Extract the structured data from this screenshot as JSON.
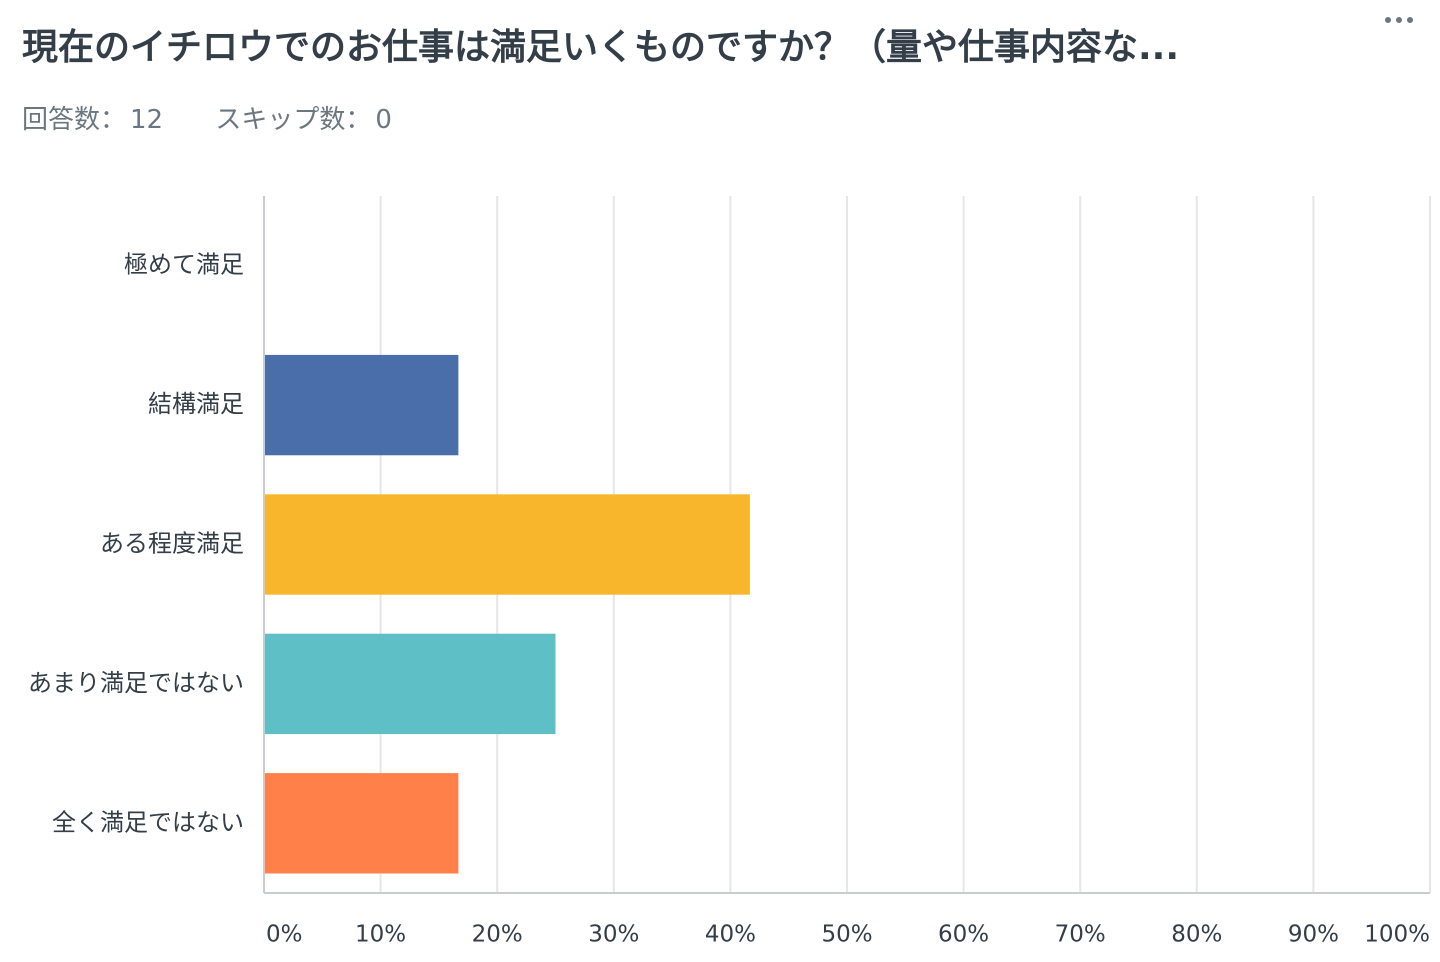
{
  "question": {
    "title": "現在のイチロウでのお仕事は満足いくものですか？（量や仕事内容な...",
    "answered_label": "回答数：",
    "answered_value": "12",
    "skipped_label": "スキップ数：",
    "skipped_value": "0",
    "menu_icon": "more-horizontal-icon"
  },
  "chart_data": {
    "type": "bar",
    "orientation": "horizontal",
    "categories": [
      "極めて満足",
      "結構満足",
      "ある程度満足",
      "あまり満足ではない",
      "全く満足ではない"
    ],
    "values": [
      0,
      16.67,
      41.67,
      25,
      16.67
    ],
    "colors": [
      "#4a6ea9",
      "#4a6ea9",
      "#f7b62b",
      "#5ec0c6",
      "#ff8049"
    ],
    "xlim": [
      0,
      100
    ],
    "xticks": [
      "0%",
      "10%",
      "20%",
      "30%",
      "40%",
      "50%",
      "60%",
      "70%",
      "80%",
      "90%",
      "100%"
    ],
    "grid": true
  }
}
